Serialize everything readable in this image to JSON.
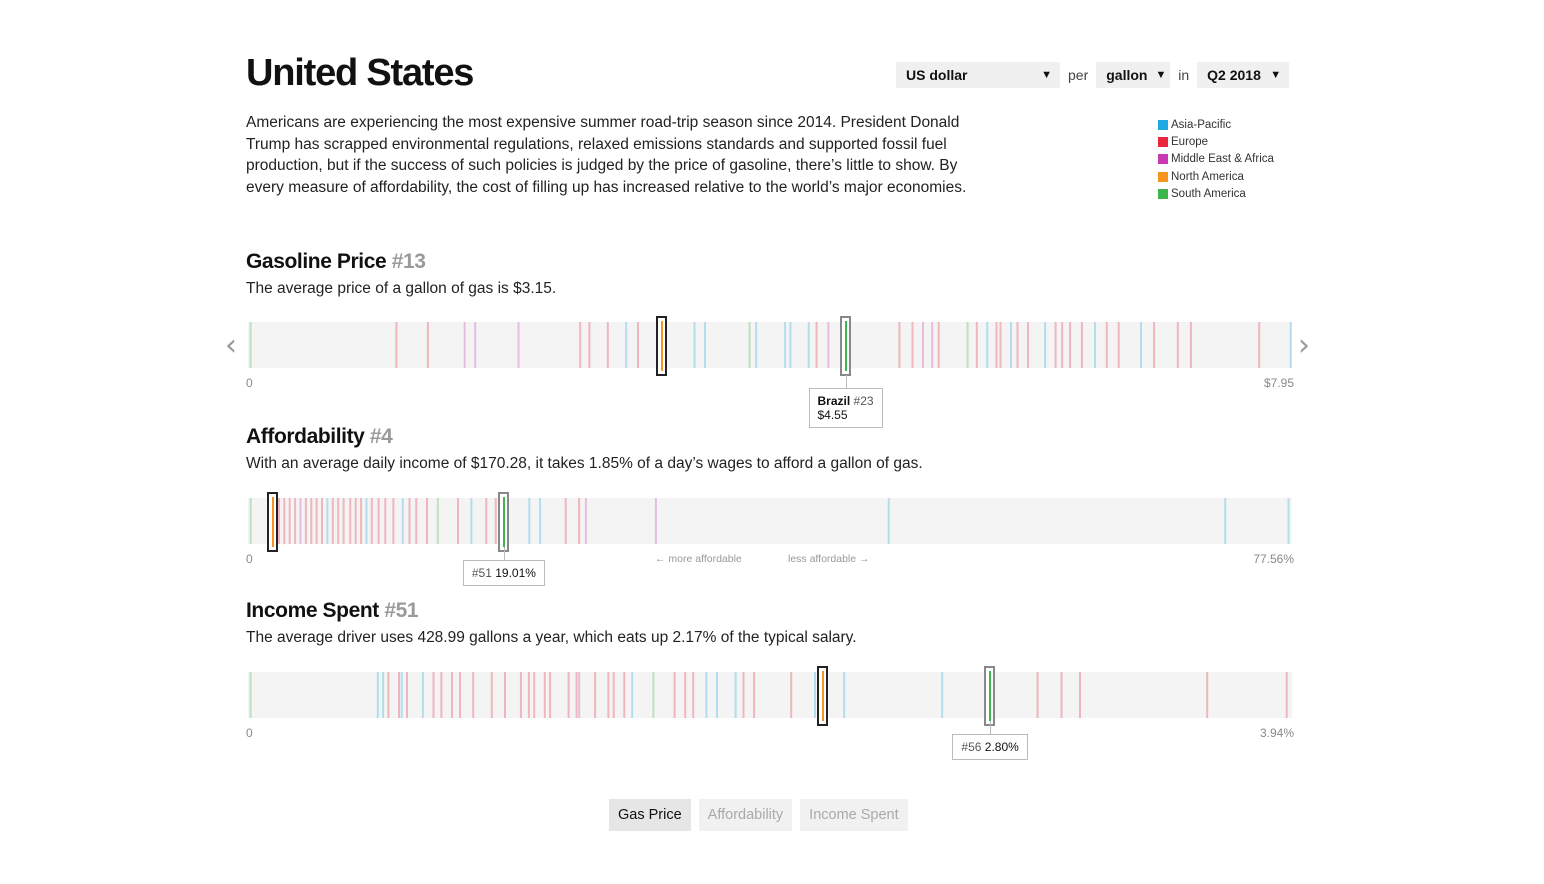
{
  "page": {
    "title": "United States"
  },
  "controls": {
    "currency": "US dollar",
    "per_label": "per",
    "unit": "gallon",
    "in_label": "in",
    "period": "Q2 2018"
  },
  "intro": "Americans are experiencing the most expensive summer road-trip season since 2014. President Donald Trump has scrapped environmental regulations, relaxed emissions standards and supported fossil fuel production, but if the success of such policies is judged by the price of gasoline, there’s little to show. By every measure of affordability, the cost of filling up has increased relative to the world’s major economies.",
  "legend": [
    {
      "label": "Asia-Pacific",
      "color": "#1da9e1"
    },
    {
      "label": "Europe",
      "color": "#e8273f"
    },
    {
      "label": "Middle East & Africa",
      "color": "#c93ab2"
    },
    {
      "label": "North America",
      "color": "#f7941d"
    },
    {
      "label": "South America",
      "color": "#3db54a"
    }
  ],
  "sections": {
    "gas_price": {
      "title": "Gasoline Price",
      "rank": "#13",
      "desc": "The average price of a gallon of gas is $3.15.",
      "axis_min": "0",
      "axis_max": "$7.95",
      "range": [
        0,
        7.95
      ],
      "us_value": 3.15,
      "compare": {
        "country": "Brazil",
        "rank": "#23",
        "value_label": "$4.55",
        "value": 4.55
      },
      "ticks": [
        [
          0.02,
          "SA"
        ],
        [
          1.13,
          "EU"
        ],
        [
          1.37,
          "EU"
        ],
        [
          1.65,
          "ME"
        ],
        [
          1.73,
          "ME"
        ],
        [
          2.06,
          "ME"
        ],
        [
          2.53,
          "EU"
        ],
        [
          2.6,
          "EU"
        ],
        [
          2.74,
          "EU"
        ],
        [
          2.88,
          "AP"
        ],
        [
          2.97,
          "EU"
        ],
        [
          3.4,
          "AP"
        ],
        [
          3.48,
          "AP"
        ],
        [
          3.82,
          "SA"
        ],
        [
          3.87,
          "AP"
        ],
        [
          4.09,
          "AP"
        ],
        [
          4.13,
          "AP"
        ],
        [
          4.27,
          "AP"
        ],
        [
          4.33,
          "EU"
        ],
        [
          4.42,
          "ME"
        ],
        [
          4.96,
          "EU"
        ],
        [
          5.06,
          "EU"
        ],
        [
          5.14,
          "ME"
        ],
        [
          5.21,
          "ME"
        ],
        [
          5.26,
          "EU"
        ],
        [
          5.48,
          "SA"
        ],
        [
          5.55,
          "EU"
        ],
        [
          5.63,
          "AP"
        ],
        [
          5.7,
          "EU"
        ],
        [
          5.73,
          "EU"
        ],
        [
          5.81,
          "AP"
        ],
        [
          5.86,
          "EU"
        ],
        [
          5.94,
          "EU"
        ],
        [
          6.07,
          "AP"
        ],
        [
          6.15,
          "EU"
        ],
        [
          6.2,
          "EU"
        ],
        [
          6.26,
          "EU"
        ],
        [
          6.35,
          "EU"
        ],
        [
          6.45,
          "AP"
        ],
        [
          6.54,
          "EU"
        ],
        [
          6.63,
          "EU"
        ],
        [
          6.8,
          "AP"
        ],
        [
          6.9,
          "EU"
        ],
        [
          7.08,
          "EU"
        ],
        [
          7.18,
          "EU"
        ],
        [
          7.7,
          "EU"
        ],
        [
          7.94,
          "AP"
        ]
      ]
    },
    "affordability": {
      "title": "Affordability",
      "rank": "#4",
      "desc": "With an average daily income of $170.28, it takes 1.85% of a day’s wages to afford a gallon of gas.",
      "axis_min": "0",
      "axis_max": "77.56%",
      "range": [
        0,
        77.56
      ],
      "us_value": 1.85,
      "note_left": "← more affordable",
      "note_right": "less affordable →",
      "compare": {
        "rank": "#51",
        "value_label": "19.01%",
        "value": 19.01
      },
      "ticks": [
        [
          0.2,
          "SA"
        ],
        [
          2.3,
          "EU"
        ],
        [
          2.7,
          "EU"
        ],
        [
          3.1,
          "EU"
        ],
        [
          3.5,
          "EU"
        ],
        [
          3.9,
          "ME"
        ],
        [
          4.3,
          "EU"
        ],
        [
          4.7,
          "EU"
        ],
        [
          5.1,
          "EU"
        ],
        [
          5.5,
          "EU"
        ],
        [
          5.9,
          "AP"
        ],
        [
          6.3,
          "EU"
        ],
        [
          6.7,
          "EU"
        ],
        [
          7.1,
          "EU"
        ],
        [
          7.6,
          "EU"
        ],
        [
          8.0,
          "EU"
        ],
        [
          8.4,
          "EU"
        ],
        [
          8.8,
          "AP"
        ],
        [
          9.2,
          "EU"
        ],
        [
          9.7,
          "EU"
        ],
        [
          10.2,
          "EU"
        ],
        [
          10.8,
          "EU"
        ],
        [
          11.5,
          "AP"
        ],
        [
          12.0,
          "EU"
        ],
        [
          12.5,
          "EU"
        ],
        [
          13.3,
          "EU"
        ],
        [
          14.1,
          "SA"
        ],
        [
          15.6,
          "EU"
        ],
        [
          16.6,
          "AP"
        ],
        [
          17.7,
          "EU"
        ],
        [
          18.4,
          "EU"
        ],
        [
          20.9,
          "AP"
        ],
        [
          21.7,
          "AP"
        ],
        [
          23.6,
          "EU"
        ],
        [
          24.6,
          "EU"
        ],
        [
          25.1,
          "ME"
        ],
        [
          30.3,
          "ME"
        ],
        [
          47.6,
          "AP"
        ],
        [
          72.6,
          "AP"
        ],
        [
          77.3,
          "AP"
        ]
      ]
    },
    "income_spent": {
      "title": "Income Spent",
      "rank": "#51",
      "desc": "The average driver uses 428.99 gallons a year, which eats up 2.17% of the typical salary.",
      "axis_min": "0",
      "axis_max": "3.94%",
      "range": [
        0,
        3.94
      ],
      "us_value": 2.17,
      "compare": {
        "rank": "#56",
        "value_label": "2.80%",
        "value": 2.8
      },
      "ticks": [
        [
          0.01,
          "SA"
        ],
        [
          0.49,
          "AP"
        ],
        [
          0.51,
          "AP"
        ],
        [
          0.53,
          "EU"
        ],
        [
          0.57,
          "EU"
        ],
        [
          0.58,
          "AP"
        ],
        [
          0.6,
          "EU"
        ],
        [
          0.66,
          "AP"
        ],
        [
          0.7,
          "EU"
        ],
        [
          0.73,
          "EU"
        ],
        [
          0.77,
          "EU"
        ],
        [
          0.8,
          "EU"
        ],
        [
          0.85,
          "EU"
        ],
        [
          0.92,
          "EU"
        ],
        [
          0.97,
          "EU"
        ],
        [
          1.03,
          "EU"
        ],
        [
          1.06,
          "EU"
        ],
        [
          1.08,
          "EU"
        ],
        [
          1.12,
          "EU"
        ],
        [
          1.14,
          "EU"
        ],
        [
          1.21,
          "EU"
        ],
        [
          1.24,
          "EU"
        ],
        [
          1.25,
          "ME"
        ],
        [
          1.31,
          "EU"
        ],
        [
          1.36,
          "EU"
        ],
        [
          1.38,
          "EU"
        ],
        [
          1.42,
          "EU"
        ],
        [
          1.45,
          "AP"
        ],
        [
          1.53,
          "SA"
        ],
        [
          1.61,
          "EU"
        ],
        [
          1.65,
          "EU"
        ],
        [
          1.68,
          "EU"
        ],
        [
          1.73,
          "AP"
        ],
        [
          1.77,
          "AP"
        ],
        [
          1.84,
          "AP"
        ],
        [
          1.87,
          "EU"
        ],
        [
          1.91,
          "EU"
        ],
        [
          2.05,
          "EU"
        ],
        [
          2.14,
          "AP"
        ],
        [
          2.25,
          "AP"
        ],
        [
          2.62,
          "AP"
        ],
        [
          2.98,
          "EU"
        ],
        [
          3.07,
          "EU"
        ],
        [
          3.14,
          "EU"
        ],
        [
          3.62,
          "EU"
        ],
        [
          3.92,
          "EU"
        ]
      ]
    }
  },
  "tabs": [
    "Gas Price",
    "Affordability",
    "Income Spent"
  ]
}
